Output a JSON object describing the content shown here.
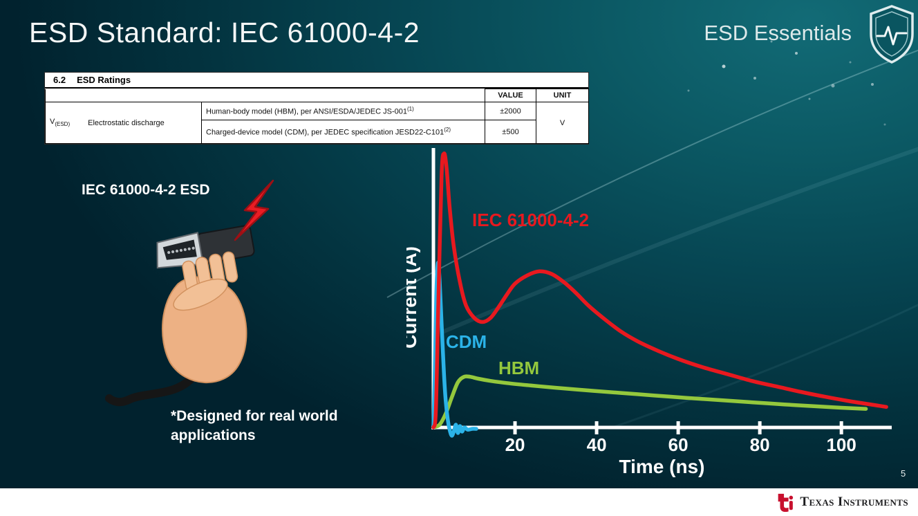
{
  "slide": {
    "title": "ESD Standard: IEC 61000-4-2",
    "brand": "ESD Essentials",
    "page_number": "5",
    "illustration_label": "IEC 61000-4-2 ESD",
    "footnote": "*Designed for real world applications"
  },
  "ratings_table": {
    "section_number": "6.2",
    "section_title": "ESD Ratings",
    "value_header": "VALUE",
    "unit_header": "UNIT",
    "symbol": "V",
    "symbol_sub": "(ESD)",
    "parameter": "Electrostatic discharge",
    "rows": [
      {
        "description": "Human-body model (HBM), per ANSI/ESDA/JEDEC JS-001",
        "superscript": "(1)",
        "value": "±2000"
      },
      {
        "description": "Charged-device model (CDM), per JEDEC specification JESD22-C101",
        "superscript": "(2)",
        "value": "±500"
      }
    ],
    "unit": "V"
  },
  "chart_data": {
    "type": "line",
    "title": "",
    "xlabel": "Time (ns)",
    "ylabel": "Current (A)",
    "x_ticks": [
      20,
      40,
      60,
      80,
      100
    ],
    "xlim": [
      0,
      112
    ],
    "ylim": [
      0,
      1
    ],
    "grid": false,
    "legend_position": "inline-labels",
    "axis_color": "#ffffff",
    "series": [
      {
        "name": "IEC 61000-4-2",
        "color": "#e8191f",
        "points": [
          [
            0,
            0
          ],
          [
            0.6,
            0.06
          ],
          [
            1.2,
            0.45
          ],
          [
            2,
            0.92
          ],
          [
            2.6,
            1.0
          ],
          [
            3.2,
            0.95
          ],
          [
            4,
            0.8
          ],
          [
            5,
            0.66
          ],
          [
            6.5,
            0.53
          ],
          [
            8,
            0.445
          ],
          [
            10,
            0.4
          ],
          [
            12,
            0.385
          ],
          [
            14,
            0.4
          ],
          [
            16,
            0.44
          ],
          [
            18,
            0.485
          ],
          [
            20,
            0.525
          ],
          [
            23,
            0.555
          ],
          [
            26,
            0.57
          ],
          [
            29,
            0.56
          ],
          [
            32,
            0.53
          ],
          [
            35,
            0.49
          ],
          [
            38,
            0.445
          ],
          [
            42,
            0.395
          ],
          [
            46,
            0.35
          ],
          [
            50,
            0.315
          ],
          [
            55,
            0.28
          ],
          [
            60,
            0.25
          ],
          [
            66,
            0.22
          ],
          [
            72,
            0.195
          ],
          [
            78,
            0.17
          ],
          [
            84,
            0.15
          ],
          [
            90,
            0.13
          ],
          [
            96,
            0.112
          ],
          [
            102,
            0.096
          ],
          [
            108,
            0.082
          ],
          [
            111,
            0.075
          ]
        ]
      },
      {
        "name": "CDM",
        "color": "#2bb3e8",
        "points": [
          [
            0,
            0
          ],
          [
            0.3,
            0.18
          ],
          [
            0.7,
            0.48
          ],
          [
            1.1,
            0.6
          ],
          [
            1.5,
            0.54
          ],
          [
            2,
            0.38
          ],
          [
            2.5,
            0.22
          ],
          [
            3,
            0.1
          ],
          [
            3.5,
            0.03
          ],
          [
            4,
            -0.01
          ],
          [
            4.5,
            -0.03
          ],
          [
            5,
            -0.015
          ],
          [
            5.5,
            0.01
          ],
          [
            6,
            -0.02
          ],
          [
            6.5,
            0.005
          ],
          [
            7,
            -0.015
          ],
          [
            7.6,
            0
          ],
          [
            8.4,
            -0.008
          ],
          [
            9.5,
            -0.005
          ],
          [
            10.5,
            -0.005
          ]
        ]
      },
      {
        "name": "HBM",
        "color": "#94c83d",
        "points": [
          [
            0,
            0
          ],
          [
            1.5,
            0.01
          ],
          [
            3,
            0.05
          ],
          [
            4.5,
            0.11
          ],
          [
            6,
            0.165
          ],
          [
            7.5,
            0.185
          ],
          [
            9,
            0.185
          ],
          [
            11,
            0.178
          ],
          [
            14,
            0.17
          ],
          [
            18,
            0.162
          ],
          [
            24,
            0.153
          ],
          [
            30,
            0.145
          ],
          [
            38,
            0.135
          ],
          [
            46,
            0.126
          ],
          [
            54,
            0.117
          ],
          [
            62,
            0.108
          ],
          [
            70,
            0.1
          ],
          [
            78,
            0.092
          ],
          [
            86,
            0.084
          ],
          [
            94,
            0.077
          ],
          [
            100,
            0.072
          ],
          [
            106,
            0.068
          ]
        ]
      }
    ]
  },
  "footer": {
    "brand": "Texas Instruments"
  }
}
